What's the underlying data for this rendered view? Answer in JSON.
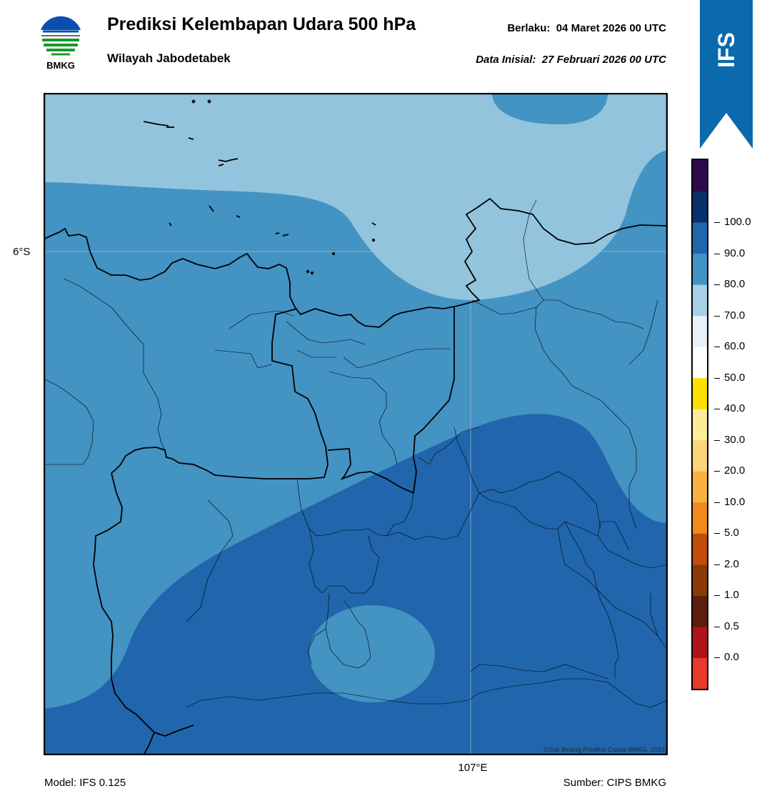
{
  "header": {
    "logo_text": "BMKG",
    "title": "Prediksi Kelembapan Udara 500 hPa",
    "region": "Wilayah Jabodetabek",
    "valid_label": "Berlaku:",
    "valid_value": "04 Maret 2026 00 UTC",
    "initial_label": "Data Inisial:",
    "initial_value": "27 Februari 2026 00 UTC"
  },
  "model_badge": "IFS",
  "map": {
    "lat_label": "6°S",
    "lon_label": "107°E",
    "copyright": "©Sub Bidang Prediksi Cuaca BMKG, 2023"
  },
  "footer": {
    "model": "Model: IFS 0.125",
    "source": "Sumber: CIPS BMKG"
  },
  "colorbar": {
    "labels": [
      "0.0",
      "0.5",
      "1.0",
      "2.0",
      "5.0",
      "10.0",
      "20.0",
      "30.0",
      "40.0",
      "50.0",
      "60.0",
      "70.0",
      "80.0",
      "90.0",
      "100.0"
    ],
    "colors_bottom_to_top": [
      "#e8392b",
      "#b01418",
      "#5e1e0e",
      "#8a3a08",
      "#c24d0a",
      "#f08a1c",
      "#f8b040",
      "#fcd47a",
      "#fcec9a",
      "#fbe100",
      "#ffffff",
      "#e8f1f8",
      "#a6d0e6",
      "#4292c6",
      "#2166ac",
      "#08306b",
      "#2d0a4e"
    ]
  },
  "colors": {
    "humidity_60_70": "#92c4de",
    "humidity_70_80": "#4393c3",
    "humidity_80_90": "#2166ac",
    "ribbon": "#0a6aab"
  }
}
